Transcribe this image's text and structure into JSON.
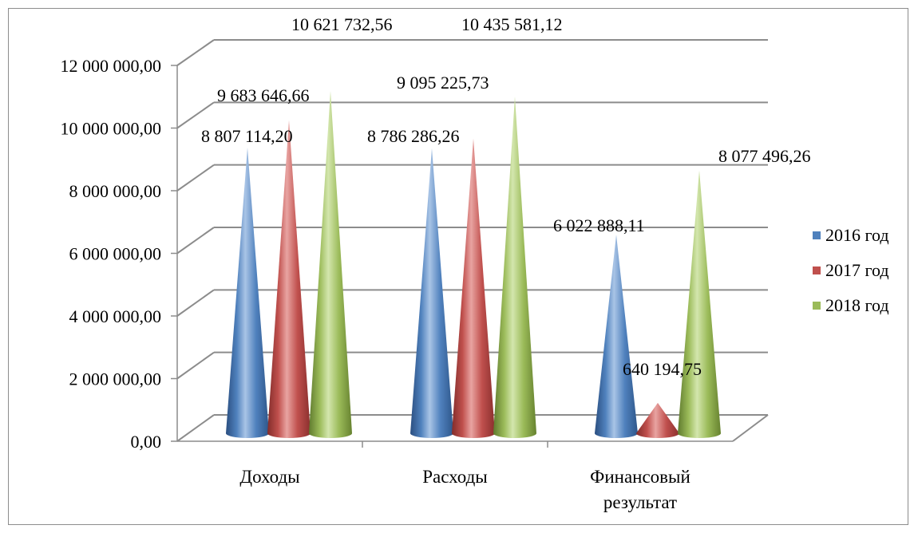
{
  "chart_data": {
    "type": "bar",
    "title": "",
    "xlabel": "",
    "ylabel": "",
    "categories": [
      "Доходы",
      "Расходы",
      "Финансовый результат"
    ],
    "category_lines": [
      [
        "Доходы"
      ],
      [
        "Расходы"
      ],
      [
        "Финансовый",
        "результат"
      ]
    ],
    "series": [
      {
        "name": "2016 год",
        "color": "#4f81bd",
        "values": [
          8807114.2,
          8786286.26,
          6022888.11
        ],
        "labels": [
          "8 807 114,20",
          "8 786 286,26",
          "6 022 888,11"
        ]
      },
      {
        "name": "2017 год",
        "color": "#c0504d",
        "values": [
          9683646.66,
          9095225.73,
          640194.75
        ],
        "labels": [
          "9 683 646,66",
          "9 095 225,73",
          "640 194,75"
        ]
      },
      {
        "name": "2018 год",
        "color": "#9bbb59",
        "values": [
          10621732.56,
          10435581.12,
          8077496.26
        ],
        "labels": [
          "10 621 732,56",
          "10 435 581,12",
          "8 077 496,26"
        ]
      }
    ],
    "ylim": [
      0,
      12000000
    ],
    "yticks": [
      0,
      2000000,
      4000000,
      6000000,
      8000000,
      10000000,
      12000000
    ],
    "ytick_labels": [
      "0,00",
      "2 000 000,00",
      "4 000 000,00",
      "6 000 000,00",
      "8 000 000,00",
      "10 000 000,00",
      "12 000 000,00"
    ],
    "grid": true,
    "legend_position": "right",
    "mark_shape": "cone"
  }
}
